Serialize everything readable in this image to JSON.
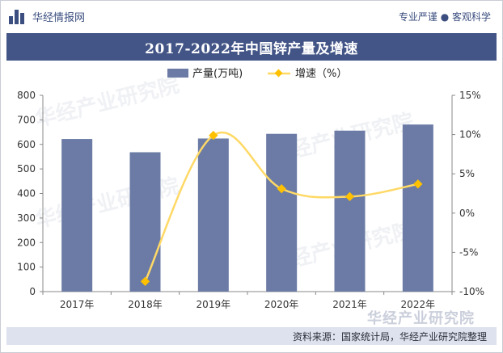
{
  "brand": {
    "name": "华经情报网",
    "tagline": "专业严谨 ● 客观科学"
  },
  "footer": {
    "source": "资料来源：国家统计局，华经产业研究院整理",
    "watermark": "华经产业研究院"
  },
  "colors": {
    "bar": "#6b7ba5",
    "line": "#ffd966",
    "marker": "#ffc000",
    "header": "#435587",
    "brand": "#3b4e7f"
  },
  "chart_data": {
    "type": "bar",
    "title": "2017-2022年中国锌产量及增速",
    "categories": [
      "2017年",
      "2018年",
      "2019年",
      "2020年",
      "2021年",
      "2022年"
    ],
    "series": [
      {
        "name": "产量(万吨)",
        "type": "bar",
        "axis": "left",
        "values": [
          622,
          568,
          624,
          643,
          656,
          681
        ]
      },
      {
        "name": "增速（%）",
        "type": "line",
        "axis": "right",
        "values": [
          -8.7,
          9.9,
          3.1,
          2.1,
          3.7
        ],
        "x": [
          "2018年",
          "2019年",
          "2020年",
          "2021年",
          "2022年"
        ]
      }
    ],
    "y_left": {
      "min": 0,
      "max": 800,
      "step": 100,
      "ticks": [
        "0",
        "100",
        "200",
        "300",
        "400",
        "500",
        "600",
        "700",
        "800"
      ]
    },
    "y_right": {
      "min": -10,
      "max": 15,
      "step": 5,
      "ticks": [
        "-10%",
        "-5%",
        "0%",
        "5%",
        "10%",
        "15%"
      ]
    },
    "legend_position": "top-center",
    "grid": false
  }
}
